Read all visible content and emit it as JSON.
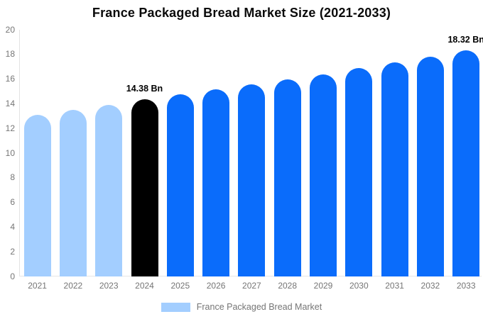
{
  "chart_data": {
    "type": "bar",
    "title": "France Packaged Bread Market Size (2021-2033)",
    "categories": [
      "2021",
      "2022",
      "2023",
      "2024",
      "2025",
      "2026",
      "2027",
      "2028",
      "2029",
      "2030",
      "2031",
      "2032",
      "2033"
    ],
    "values": [
      13.1,
      13.5,
      13.9,
      14.38,
      14.75,
      15.15,
      15.55,
      15.95,
      16.4,
      16.9,
      17.35,
      17.8,
      18.32
    ],
    "unit": "Bn",
    "xlabel": "",
    "ylabel": "",
    "ylim": [
      0,
      20
    ],
    "ytick_step": 2,
    "grid": false,
    "legend_position": "bottom",
    "annotations": [
      {
        "category": "2024",
        "text": "14.38 Bn"
      },
      {
        "category": "2033",
        "text": "18.32 Bn"
      }
    ],
    "colors": {
      "historical": "#A3CEFF",
      "current": "#000000",
      "forecast": "#0A6CFB"
    },
    "bar_roles": [
      "historical",
      "historical",
      "historical",
      "current",
      "forecast",
      "forecast",
      "forecast",
      "forecast",
      "forecast",
      "forecast",
      "forecast",
      "forecast",
      "forecast"
    ]
  },
  "legend": {
    "label": "France Packaged Bread Market",
    "swatch_color": "#A3CEFF"
  },
  "axis": {
    "tick_color": "#757575",
    "line_color": "#E2E2E2"
  }
}
